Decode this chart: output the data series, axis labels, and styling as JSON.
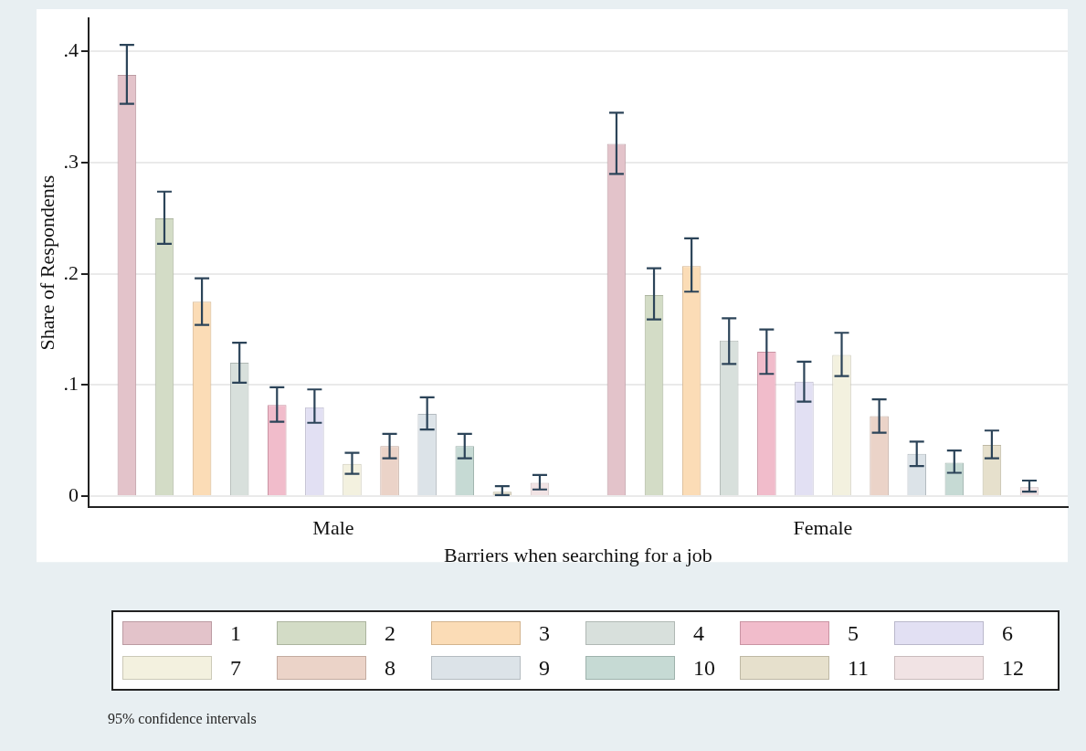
{
  "chart_data": {
    "type": "bar",
    "xlabel": "Barriers when searching for a job",
    "ylabel": "Share of Respondents",
    "categories": [
      "Male",
      "Female"
    ],
    "ylim": [
      -0.01,
      0.43
    ],
    "yticks": [
      {
        "value": 0,
        "label": "0"
      },
      {
        "value": 0.1,
        "label": ".1"
      },
      {
        "value": 0.2,
        "label": ".2"
      },
      {
        "value": 0.3,
        "label": ".3"
      },
      {
        "value": 0.4,
        "label": ".4"
      }
    ],
    "grid": "y",
    "legend": "bottom",
    "annotations": [
      "95% confidence intervals"
    ],
    "series": [
      {
        "name": "1",
        "color": "#e3c3ca",
        "values": [
          0.379,
          0.317
        ],
        "errors": [
          [
            0.353,
            0.406
          ],
          [
            0.29,
            0.345
          ]
        ]
      },
      {
        "name": "2",
        "color": "#d3dcc6",
        "values": [
          0.25,
          0.181
        ],
        "errors": [
          [
            0.227,
            0.274
          ],
          [
            0.159,
            0.205
          ]
        ]
      },
      {
        "name": "3",
        "color": "#fbdcb6",
        "values": [
          0.175,
          0.207
        ],
        "errors": [
          [
            0.154,
            0.196
          ],
          [
            0.184,
            0.232
          ]
        ]
      },
      {
        "name": "4",
        "color": "#d8e0dc",
        "values": [
          0.12,
          0.14
        ],
        "errors": [
          [
            0.102,
            0.138
          ],
          [
            0.119,
            0.16
          ]
        ]
      },
      {
        "name": "5",
        "color": "#f1bccb",
        "values": [
          0.082,
          0.13
        ],
        "errors": [
          [
            0.067,
            0.098
          ],
          [
            0.11,
            0.15
          ]
        ]
      },
      {
        "name": "6",
        "color": "#e2e0f3",
        "values": [
          0.08,
          0.103
        ],
        "errors": [
          [
            0.066,
            0.096
          ],
          [
            0.085,
            0.121
          ]
        ]
      },
      {
        "name": "7",
        "color": "#f3f1df",
        "values": [
          0.029,
          0.127
        ],
        "errors": [
          [
            0.02,
            0.039
          ],
          [
            0.108,
            0.147
          ]
        ]
      },
      {
        "name": "8",
        "color": "#ebd3c8",
        "values": [
          0.045,
          0.072
        ],
        "errors": [
          [
            0.034,
            0.056
          ],
          [
            0.057,
            0.087
          ]
        ]
      },
      {
        "name": "9",
        "color": "#dce3e8",
        "values": [
          0.074,
          0.038
        ],
        "errors": [
          [
            0.06,
            0.089
          ],
          [
            0.027,
            0.049
          ]
        ]
      },
      {
        "name": "10",
        "color": "#c6dad4",
        "values": [
          0.045,
          0.03
        ],
        "errors": [
          [
            0.034,
            0.056
          ],
          [
            0.021,
            0.041
          ]
        ]
      },
      {
        "name": "11",
        "color": "#e6e0cc",
        "values": [
          0.004,
          0.046
        ],
        "errors": [
          [
            0.001,
            0.009
          ],
          [
            0.034,
            0.059
          ]
        ]
      },
      {
        "name": "12",
        "color": "#f1e3e4",
        "values": [
          0.012,
          0.008
        ],
        "errors": [
          [
            0.006,
            0.019
          ],
          [
            0.004,
            0.014
          ]
        ]
      }
    ]
  }
}
